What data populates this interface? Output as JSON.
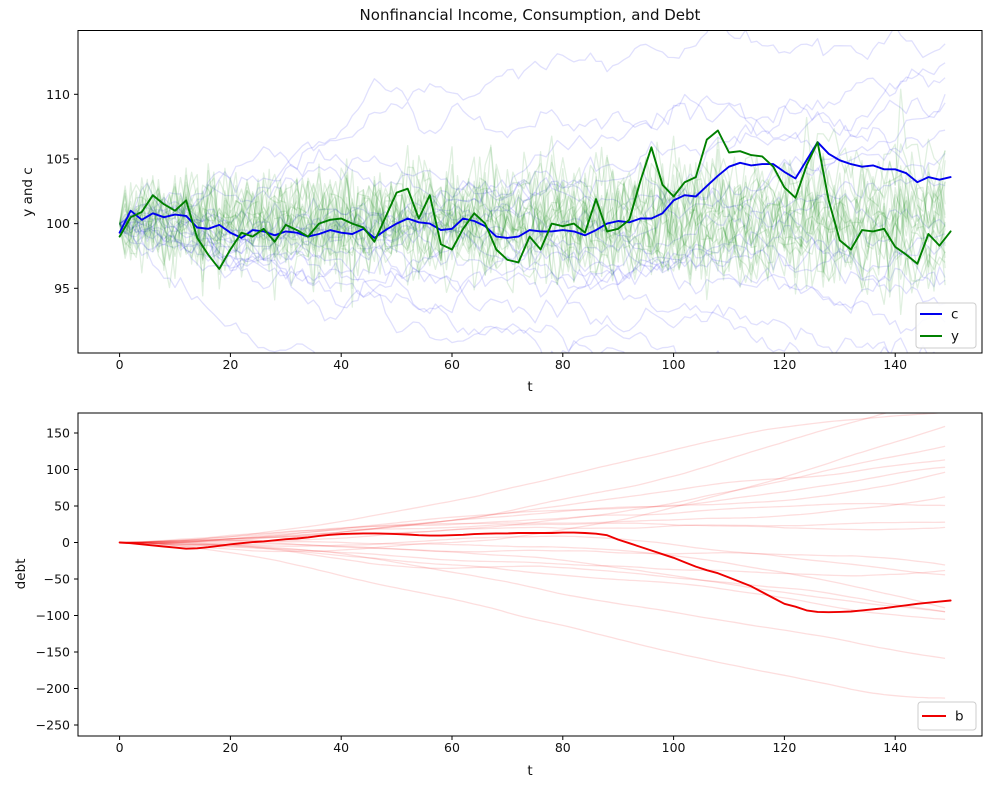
{
  "figure_title": "Nonfinancial Income, Consumption, and Debt",
  "chart_data": [
    {
      "type": "line",
      "title": "Nonfinancial Income, Consumption, and Debt",
      "xlabel": "t",
      "ylabel": "y and c",
      "xlim": [
        -7.5,
        156.5
      ],
      "ylim": [
        90,
        115
      ],
      "xticks": [
        0,
        20,
        40,
        60,
        80,
        100,
        120,
        140
      ],
      "yticks": [
        95,
        100,
        105,
        110
      ],
      "grid": false,
      "legend": {
        "position": "lower right",
        "entries": [
          {
            "label": "c",
            "color": "#0000ee"
          },
          {
            "label": "y",
            "color": "#008000"
          }
        ]
      },
      "x_start": 0,
      "x_step": 2,
      "series": [
        {
          "name": "c",
          "color": "#0000ee",
          "width": 1.9,
          "values": [
            99.3,
            101.0,
            100.3,
            100.8,
            100.5,
            100.7,
            100.6,
            99.7,
            99.6,
            99.9,
            99.3,
            98.9,
            99.5,
            99.4,
            99.1,
            99.4,
            99.3,
            99.0,
            99.2,
            99.5,
            99.3,
            99.2,
            99.6,
            98.9,
            99.5,
            100.0,
            100.4,
            100.1,
            100.0,
            99.5,
            99.6,
            100.4,
            100.2,
            99.8,
            99.0,
            98.9,
            99.0,
            99.5,
            99.4,
            99.4,
            99.5,
            99.4,
            99.1,
            99.5,
            100.0,
            100.2,
            100.1,
            100.4,
            100.4,
            100.8,
            101.8,
            102.2,
            102.1,
            102.9,
            103.7,
            104.4,
            104.7,
            104.5,
            104.6,
            104.6,
            104.0,
            103.5,
            104.9,
            106.3,
            105.4,
            104.9,
            104.6,
            104.4,
            104.5,
            104.2,
            104.2,
            103.9,
            103.2,
            103.6,
            103.4,
            103.6
          ]
        },
        {
          "name": "y",
          "color": "#008000",
          "width": 1.9,
          "values": [
            99.0,
            100.5,
            100.9,
            102.2,
            101.5,
            101.0,
            101.8,
            98.9,
            97.6,
            96.5,
            98.0,
            99.3,
            99.0,
            99.6,
            98.6,
            99.9,
            99.5,
            99.0,
            100.0,
            100.3,
            100.4,
            100.0,
            99.7,
            98.6,
            100.5,
            102.4,
            102.7,
            100.4,
            102.2,
            98.4,
            98.0,
            99.6,
            100.8,
            100.0,
            98.0,
            97.2,
            97.0,
            99.0,
            98.0,
            100.0,
            99.8,
            100.0,
            99.3,
            101.9,
            99.4,
            99.6,
            100.3,
            103.3,
            105.9,
            103.0,
            102.1,
            103.2,
            103.6,
            106.5,
            107.2,
            105.5,
            105.6,
            105.3,
            105.2,
            104.4,
            102.8,
            102.0,
            104.5,
            106.3,
            101.8,
            98.7,
            98.0,
            99.5,
            99.4,
            99.6,
            98.2,
            97.6,
            96.9,
            99.2,
            98.3,
            99.4
          ]
        }
      ],
      "background_ensemble": [
        {
          "kind": "walk",
          "count": 20,
          "start": 100,
          "drift_sd": 0.04,
          "step_sd": 0.5,
          "seed": 20,
          "color": "#0000ee",
          "alpha": 0.12,
          "width": 1.3,
          "points": 150
        },
        {
          "kind": "noisy",
          "count": 20,
          "start": 100,
          "walk_sd": 0.13,
          "noise_sd": 1.8,
          "seed": 5,
          "color": "#008000",
          "alpha": 0.12,
          "width": 1.3,
          "points": 150
        }
      ]
    },
    {
      "type": "line",
      "title": "",
      "xlabel": "t",
      "ylabel": "debt",
      "xlim": [
        -7.5,
        156.5
      ],
      "ylim": [
        -265,
        177
      ],
      "xticks": [
        0,
        20,
        40,
        60,
        80,
        100,
        120,
        140
      ],
      "yticks": [
        150,
        100,
        50,
        0,
        -50,
        -100,
        -150,
        -200,
        -250
      ],
      "grid": false,
      "legend": {
        "position": "lower right",
        "entries": [
          {
            "label": "b",
            "color": "#ee0000"
          }
        ]
      },
      "x_start": 0,
      "x_step": 2,
      "series": [
        {
          "name": "b",
          "color": "#ee0000",
          "width": 1.9,
          "values": [
            0,
            -1,
            -2.5,
            -4,
            -5.5,
            -7,
            -8.5,
            -8,
            -6.5,
            -4.5,
            -2.5,
            -1,
            0.5,
            1.5,
            3,
            4.5,
            5.5,
            7,
            9,
            10.5,
            11.5,
            12,
            12.5,
            12.5,
            12,
            11.5,
            11,
            10,
            9.5,
            9.5,
            10,
            10.5,
            11.5,
            12,
            12.5,
            12.5,
            13,
            13,
            13,
            13,
            13.5,
            13.5,
            13,
            12,
            10,
            4,
            -1,
            -6,
            -11,
            -16,
            -21,
            -27,
            -33,
            -38,
            -42,
            -48,
            -54,
            -60,
            -68,
            -76,
            -84,
            -88,
            -93,
            -95,
            -95.5,
            -95,
            -94.5,
            -93,
            -91.5,
            -90,
            -88,
            -86,
            -84,
            -82.5,
            -81,
            -79.5
          ]
        }
      ],
      "background_ensemble": [
        {
          "kind": "integrated",
          "count": 20,
          "start": 0,
          "trend_sd": 0.11,
          "seed": 9,
          "color": "#ee0000",
          "alpha": 0.13,
          "width": 1.3,
          "points": 150
        }
      ]
    }
  ]
}
